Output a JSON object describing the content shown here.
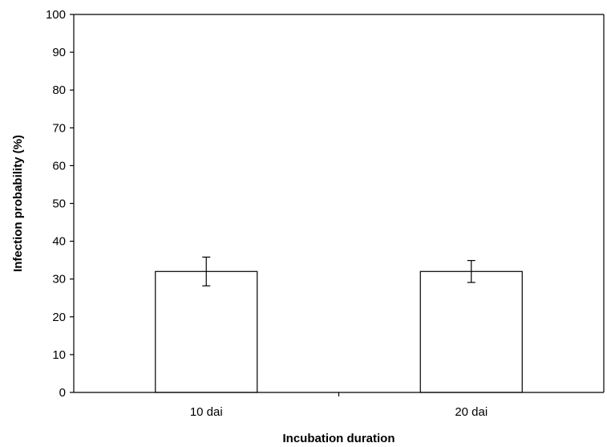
{
  "chart_data": {
    "type": "bar",
    "categories": [
      "10 dai",
      "20 dai"
    ],
    "values": [
      32,
      32
    ],
    "error": [
      3.8,
      2.9
    ],
    "xlabel": "Incubation duration",
    "ylabel": "Infection probability (%)",
    "ylim": [
      0,
      100
    ],
    "yticks": [
      0,
      10,
      20,
      30,
      40,
      50,
      60,
      70,
      80,
      90,
      100
    ],
    "grid": false,
    "colors": {
      "bar_fill": "#ffffff",
      "bar_stroke": "#000000",
      "axis": "#000000"
    }
  }
}
